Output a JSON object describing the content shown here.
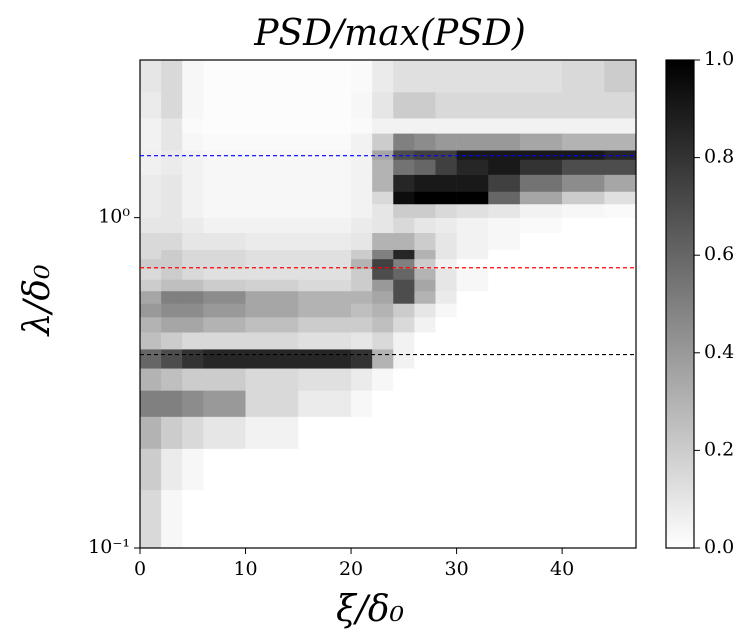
{
  "chart_data": {
    "type": "heatmap",
    "title": "PSD/max(PSD)",
    "xlabel": "ξ/δ₀",
    "ylabel": "λ/δ₀",
    "xlim": [
      0,
      47
    ],
    "xticks": [
      0,
      10,
      20,
      30,
      40
    ],
    "ylim": [
      0.1,
      3.0
    ],
    "yscale": "log",
    "yticks": [
      {
        "value": 0.1,
        "label": "10⁻¹"
      },
      {
        "value": 1,
        "label": "10⁰"
      }
    ],
    "clim": [
      0,
      1
    ],
    "cticks": [
      {
        "value": 0,
        "label": "0.0"
      },
      {
        "value": 0.2,
        "label": "0.2"
      },
      {
        "value": 0.4,
        "label": "0.4"
      },
      {
        "value": 0.6,
        "label": "0.6"
      },
      {
        "value": 0.8,
        "label": "0.8"
      },
      {
        "value": 1,
        "label": "1.0"
      }
    ],
    "colormap": "gray_r",
    "x_edges": [
      0,
      2,
      4,
      6,
      10,
      15,
      20,
      22,
      24,
      26,
      28,
      30,
      33,
      36,
      40,
      44,
      47
    ],
    "y_edges": [
      0.1,
      0.15,
      0.2,
      0.25,
      0.3,
      0.35,
      0.4,
      0.45,
      0.5,
      0.55,
      0.6,
      0.65,
      0.7,
      0.75,
      0.8,
      0.9,
      1.0,
      1.1,
      1.2,
      1.35,
      1.5,
      1.6,
      1.8,
      2.0,
      2.4,
      3.0
    ],
    "z": [
      [
        0.15,
        0.03,
        0,
        0,
        0,
        0,
        0,
        0,
        0,
        0,
        0,
        0,
        0,
        0,
        0,
        0
      ],
      [
        0.2,
        0.08,
        0.03,
        0,
        0,
        0,
        0,
        0,
        0,
        0,
        0,
        0,
        0,
        0,
        0,
        0
      ],
      [
        0.3,
        0.2,
        0.15,
        0.1,
        0.05,
        0,
        0,
        0,
        0,
        0,
        0,
        0,
        0,
        0,
        0,
        0
      ],
      [
        0.5,
        0.5,
        0.45,
        0.4,
        0.15,
        0.08,
        0.03,
        0,
        0,
        0,
        0,
        0,
        0,
        0,
        0,
        0
      ],
      [
        0.3,
        0.25,
        0.2,
        0.2,
        0.15,
        0.12,
        0.08,
        0.03,
        0,
        0,
        0,
        0,
        0,
        0,
        0,
        0
      ],
      [
        0.6,
        0.7,
        0.8,
        0.85,
        0.85,
        0.85,
        0.8,
        0.3,
        0.05,
        0,
        0,
        0,
        0,
        0,
        0,
        0
      ],
      [
        0.25,
        0.2,
        0.15,
        0.15,
        0.15,
        0.12,
        0.1,
        0.15,
        0.05,
        0,
        0,
        0,
        0,
        0,
        0,
        0
      ],
      [
        0.3,
        0.35,
        0.35,
        0.3,
        0.25,
        0.2,
        0.2,
        0.25,
        0.15,
        0.05,
        0,
        0,
        0,
        0,
        0,
        0
      ],
      [
        0.4,
        0.45,
        0.45,
        0.4,
        0.35,
        0.3,
        0.25,
        0.3,
        0.2,
        0.1,
        0.03,
        0,
        0,
        0,
        0,
        0
      ],
      [
        0.35,
        0.5,
        0.5,
        0.45,
        0.35,
        0.3,
        0.3,
        0.35,
        0.7,
        0.3,
        0.08,
        0,
        0,
        0,
        0,
        0
      ],
      [
        0.2,
        0.25,
        0.25,
        0.2,
        0.18,
        0.15,
        0.2,
        0.4,
        0.7,
        0.35,
        0.1,
        0.03,
        0,
        0,
        0,
        0
      ],
      [
        0.15,
        0.2,
        0.15,
        0.12,
        0.12,
        0.12,
        0.2,
        0.7,
        0.6,
        0.3,
        0.1,
        0.03,
        0,
        0,
        0,
        0
      ],
      [
        0.2,
        0.2,
        0.15,
        0.15,
        0.12,
        0.12,
        0.3,
        0.75,
        0.5,
        0.2,
        0.05,
        0,
        0,
        0,
        0,
        0
      ],
      [
        0.15,
        0.2,
        0.15,
        0.15,
        0.12,
        0.12,
        0.2,
        0.5,
        0.85,
        0.3,
        0.1,
        0.05,
        0,
        0,
        0,
        0
      ],
      [
        0.15,
        0.15,
        0.1,
        0.1,
        0.08,
        0.08,
        0.1,
        0.3,
        0.3,
        0.2,
        0.1,
        0.05,
        0.03,
        0,
        0,
        0
      ],
      [
        0.1,
        0.1,
        0.08,
        0.05,
        0.05,
        0.05,
        0.08,
        0.1,
        0.15,
        0.1,
        0.08,
        0.05,
        0.03,
        0.02,
        0,
        0
      ],
      [
        0.08,
        0.1,
        0.05,
        0.03,
        0.03,
        0.03,
        0.05,
        0.1,
        0.2,
        0.2,
        0.15,
        0.12,
        0.1,
        0.05,
        0.03,
        0.02
      ],
      [
        0.08,
        0.1,
        0.05,
        0.03,
        0.03,
        0.03,
        0.05,
        0.15,
        0.95,
        1.0,
        1.0,
        1.0,
        0.6,
        0.35,
        0.2,
        0.12
      ],
      [
        0.08,
        0.1,
        0.05,
        0.03,
        0.03,
        0.03,
        0.05,
        0.3,
        0.85,
        0.9,
        0.9,
        0.9,
        0.75,
        0.55,
        0.45,
        0.35
      ],
      [
        0.06,
        0.08,
        0.05,
        0.03,
        0.03,
        0.03,
        0.05,
        0.3,
        0.55,
        0.6,
        0.75,
        0.85,
        0.9,
        0.8,
        0.7,
        0.7
      ],
      [
        0.06,
        0.08,
        0.05,
        0.03,
        0.03,
        0.03,
        0.05,
        0.35,
        0.7,
        0.75,
        0.75,
        0.9,
        0.9,
        0.9,
        0.9,
        0.85
      ],
      [
        0.05,
        0.1,
        0.03,
        0.02,
        0.02,
        0.02,
        0.05,
        0.2,
        0.5,
        0.45,
        0.4,
        0.4,
        0.4,
        0.35,
        0.3,
        0.3
      ],
      [
        0.05,
        0.1,
        0.02,
        0.01,
        0.01,
        0.01,
        0.02,
        0.05,
        0.05,
        0.05,
        0.05,
        0.05,
        0.05,
        0.05,
        0.05,
        0.05
      ],
      [
        0.08,
        0.15,
        0.03,
        0.01,
        0.01,
        0.01,
        0.03,
        0.1,
        0.2,
        0.2,
        0.15,
        0.15,
        0.15,
        0.15,
        0.15,
        0.15
      ],
      [
        0.1,
        0.15,
        0.03,
        0.01,
        0.01,
        0.01,
        0.02,
        0.08,
        0.12,
        0.12,
        0.12,
        0.12,
        0.12,
        0.12,
        0.15,
        0.2
      ]
    ],
    "hlines": [
      {
        "value": 1.54,
        "color": "#0000ff"
      },
      {
        "value": 0.705,
        "color": "#ff0000"
      },
      {
        "value": 0.385,
        "color": "#000000"
      }
    ]
  }
}
